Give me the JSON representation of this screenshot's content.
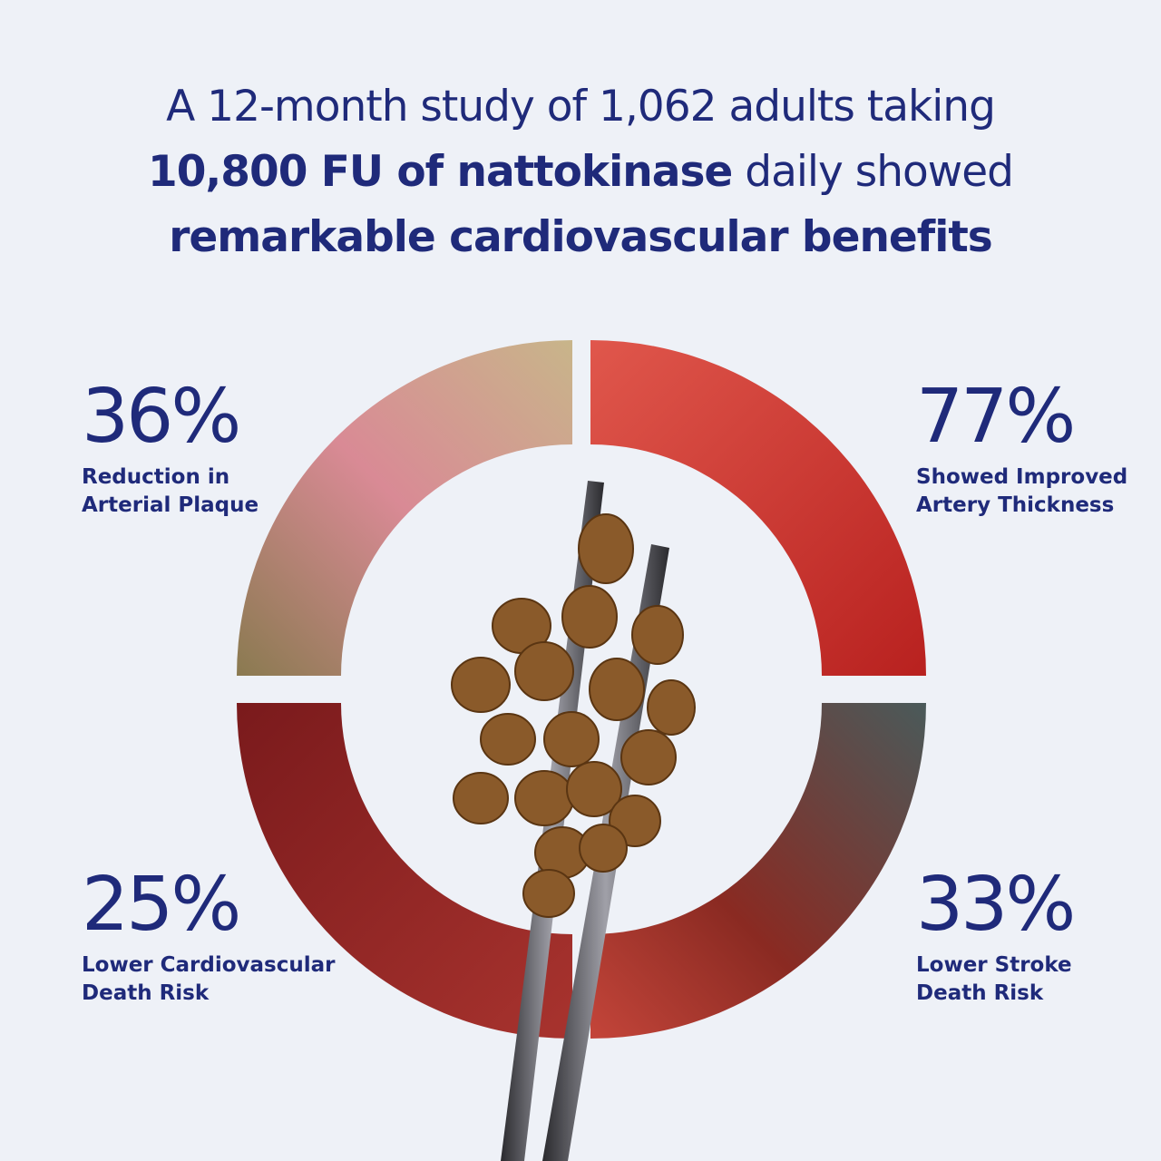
{
  "headline": {
    "line1": "A 12-month study of 1,062 adults taking",
    "line2_bold": "10,800 FU of nattokinase",
    "line2_rest": " daily showed",
    "line3_bold": "remarkable cardiovascular benefits"
  },
  "stats": [
    {
      "value": "36%",
      "label_line1": "Reduction in",
      "label_line2": "Arterial Plaque"
    },
    {
      "value": "77%",
      "label_line1": "Showed Improved",
      "label_line2": "Artery Thickness"
    },
    {
      "value": "25%",
      "label_line1": "Lower Cardiovascular",
      "label_line2": "Death Risk"
    },
    {
      "value": "33%",
      "label_line1": "Lower Stroke",
      "label_line2": "Death Risk"
    }
  ]
}
